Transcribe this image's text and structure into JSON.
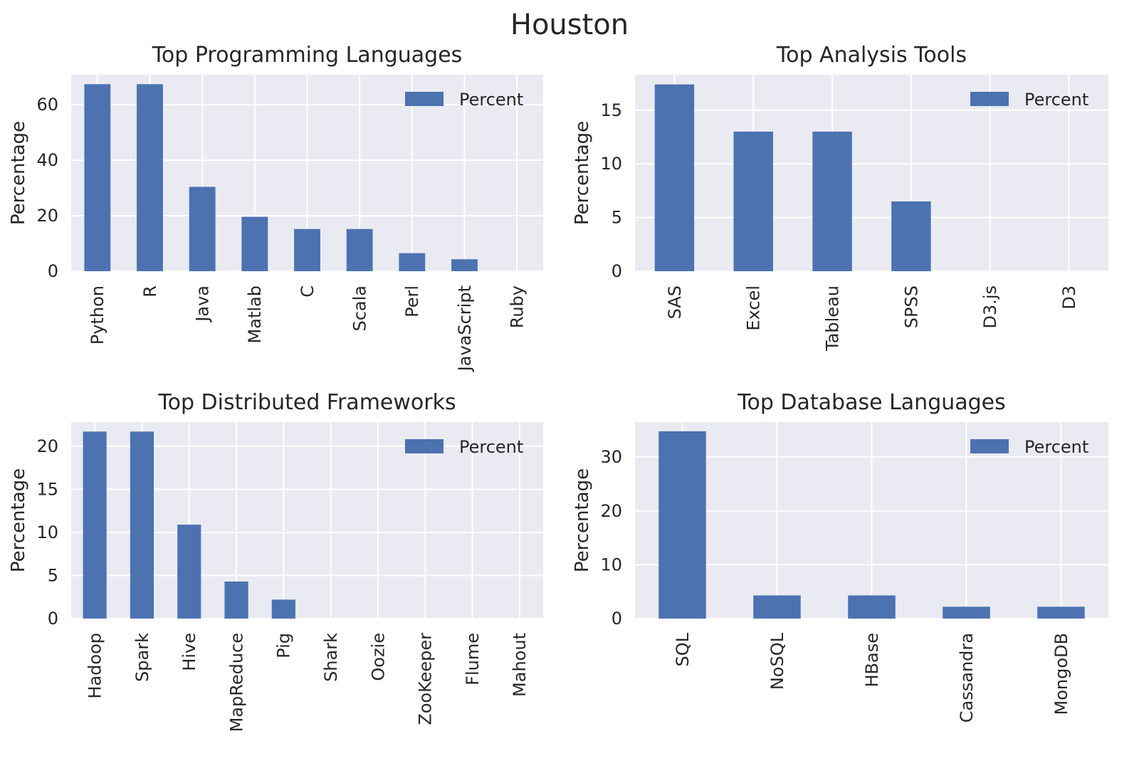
{
  "figure": {
    "suptitle": "Houston"
  },
  "colors": {
    "bar": "#4c72b0",
    "axes_bg": "#eaeaf2",
    "grid": "#ffffff",
    "text": "#262626"
  },
  "chart_data": [
    {
      "type": "bar",
      "title": "Top Programming Languages",
      "ylabel": "Percentage",
      "legend": "Percent",
      "legend_position": "upper right",
      "grid": true,
      "categories": [
        "Python",
        "R",
        "Java",
        "Matlab",
        "C",
        "Scala",
        "Perl",
        "JavaScript",
        "Ruby"
      ],
      "values": [
        67.4,
        67.4,
        30.4,
        19.6,
        15.2,
        15.2,
        6.5,
        4.3,
        0
      ],
      "ylim": [
        0,
        70.8
      ],
      "yticks": [
        0,
        20,
        40,
        60
      ]
    },
    {
      "type": "bar",
      "title": "Top Analysis Tools",
      "ylabel": "Percentage",
      "legend": "Percent",
      "legend_position": "upper right",
      "grid": true,
      "categories": [
        "SAS",
        "Excel",
        "Tableau",
        "SPSS",
        "D3.js",
        "D3"
      ],
      "values": [
        17.4,
        13.0,
        13.0,
        6.5,
        0,
        0
      ],
      "ylim": [
        0,
        18.3
      ],
      "yticks": [
        0,
        5,
        10,
        15
      ]
    },
    {
      "type": "bar",
      "title": "Top Distributed Frameworks",
      "ylabel": "Percentage",
      "legend": "Percent",
      "legend_position": "upper right",
      "grid": true,
      "categories": [
        "Hadoop",
        "Spark",
        "Hive",
        "MapReduce",
        "Pig",
        "Shark",
        "Oozie",
        "ZooKeeper",
        "Flume",
        "Mahout"
      ],
      "values": [
        21.7,
        21.7,
        10.9,
        4.3,
        2.2,
        0,
        0,
        0,
        0,
        0
      ],
      "ylim": [
        0,
        22.8
      ],
      "yticks": [
        0,
        5,
        10,
        15,
        20
      ]
    },
    {
      "type": "bar",
      "title": "Top Database Languages",
      "ylabel": "Percentage",
      "legend": "Percent",
      "legend_position": "upper right",
      "grid": true,
      "categories": [
        "SQL",
        "NoSQL",
        "HBase",
        "Cassandra",
        "MongoDB"
      ],
      "values": [
        34.8,
        4.3,
        4.3,
        2.2,
        2.2
      ],
      "ylim": [
        0,
        36.5
      ],
      "yticks": [
        0,
        10,
        20,
        30
      ]
    }
  ]
}
